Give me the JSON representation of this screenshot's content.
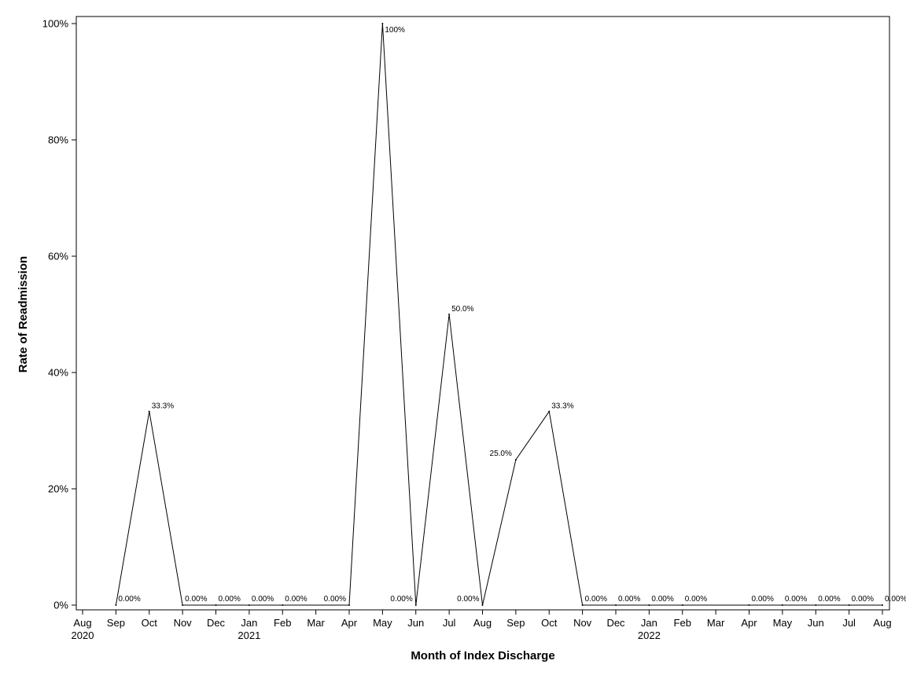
{
  "chart_data": {
    "type": "line",
    "xlabel": "Month of Index Discharge",
    "ylabel": "Rate of Readmission",
    "ylim": [
      0,
      100
    ],
    "y_ticks": [
      "0%",
      "20%",
      "40%",
      "60%",
      "80%",
      "100%"
    ],
    "x_range": [
      "2020-08",
      "2022-08"
    ],
    "x_tick_labels": [
      {
        "month": "Aug",
        "year": "2020"
      },
      {
        "month": "Sep",
        "year": ""
      },
      {
        "month": "Oct",
        "year": ""
      },
      {
        "month": "Nov",
        "year": ""
      },
      {
        "month": "Dec",
        "year": ""
      },
      {
        "month": "Jan",
        "year": "2021"
      },
      {
        "month": "Feb",
        "year": ""
      },
      {
        "month": "Mar",
        "year": ""
      },
      {
        "month": "Apr",
        "year": ""
      },
      {
        "month": "May",
        "year": ""
      },
      {
        "month": "Jun",
        "year": ""
      },
      {
        "month": "Jul",
        "year": ""
      },
      {
        "month": "Aug",
        "year": ""
      },
      {
        "month": "Sep",
        "year": ""
      },
      {
        "month": "Oct",
        "year": ""
      },
      {
        "month": "Nov",
        "year": ""
      },
      {
        "month": "Dec",
        "year": ""
      },
      {
        "month": "Jan",
        "year": "2022"
      },
      {
        "month": "Feb",
        "year": ""
      },
      {
        "month": "Mar",
        "year": ""
      },
      {
        "month": "Apr",
        "year": ""
      },
      {
        "month": "May",
        "year": ""
      },
      {
        "month": "Jun",
        "year": ""
      },
      {
        "month": "Jul",
        "year": ""
      },
      {
        "month": "Aug",
        "year": ""
      }
    ],
    "grid": false,
    "legend": "none",
    "line_color": "#000000",
    "series": [
      {
        "points": [
          {
            "x": "2020-09",
            "y": 0,
            "label": "0.00%"
          },
          {
            "x": "2020-10",
            "y": 33.3,
            "label": "33.3%"
          },
          {
            "x": "2020-11",
            "y": 0,
            "label": "0.00%"
          },
          {
            "x": "2020-12",
            "y": 0,
            "label": "0.00%"
          },
          {
            "x": "2021-01",
            "y": 0,
            "label": "0.00%"
          },
          {
            "x": "2021-02",
            "y": 0,
            "label": "0.00%"
          },
          {
            "x": "2021-04",
            "y": 0,
            "label": "0.00%"
          },
          {
            "x": "2021-05",
            "y": 100,
            "label": "100%"
          },
          {
            "x": "2021-06",
            "y": 0,
            "label": "0.00%"
          },
          {
            "x": "2021-07",
            "y": 50,
            "label": "50.0%"
          },
          {
            "x": "2021-08",
            "y": 0,
            "label": "0.00%"
          },
          {
            "x": "2021-09",
            "y": 25,
            "label": "25.0%"
          },
          {
            "x": "2021-10",
            "y": 33.3,
            "label": "33.3%"
          },
          {
            "x": "2021-11",
            "y": 0,
            "label": "0.00%"
          },
          {
            "x": "2021-12",
            "y": 0,
            "label": "0.00%"
          },
          {
            "x": "2022-01",
            "y": 0,
            "label": "0.00%"
          },
          {
            "x": "2022-02",
            "y": 0,
            "label": "0.00%"
          },
          {
            "x": "2022-04",
            "y": 0,
            "label": "0.00%"
          },
          {
            "x": "2022-05",
            "y": 0,
            "label": "0.00%"
          },
          {
            "x": "2022-06",
            "y": 0,
            "label": "0.00%"
          },
          {
            "x": "2022-07",
            "y": 0,
            "label": "0.00%"
          },
          {
            "x": "2022-08",
            "y": 0,
            "label": "0.00%"
          }
        ]
      }
    ]
  }
}
